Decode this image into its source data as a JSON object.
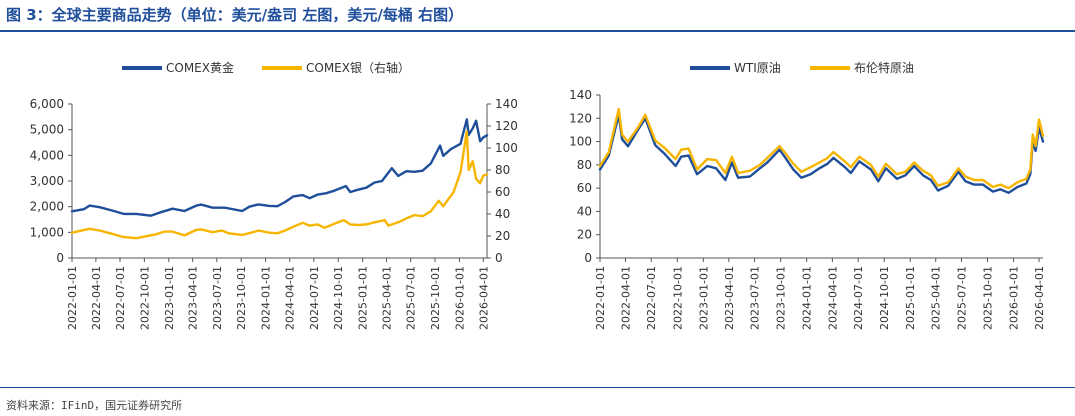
{
  "figure": {
    "title": "图 3：全球主要商品走势（单位：美元/盎司 左图，美元/每桶 右图）",
    "source": "资料来源：IFinD，国元证券研究所"
  },
  "colors": {
    "primary": "#1f4e9a",
    "secondary": "#f7b500"
  },
  "x_ticks": [
    "2022-01-01",
    "2022-04-01",
    "2022-07-01",
    "2022-10-01",
    "2023-01-01",
    "2023-04-01",
    "2023-07-01",
    "2023-10-01",
    "2024-01-01",
    "2024-04-01",
    "2024-07-01",
    "2024-10-01",
    "2025-01-01",
    "2025-04-01",
    "2025-07-01",
    "2025-10-01",
    "2026-01-01",
    "2026-04-01"
  ],
  "chart_data": [
    {
      "type": "line",
      "xlabel": "",
      "ylabel": "",
      "x_start": "2022-01-01",
      "x_end": "2026-04-15",
      "y_left_ticks": [
        "0",
        "1,000",
        "2,000",
        "3,000",
        "4,000",
        "5,000",
        "6,000"
      ],
      "ylim_left": [
        0,
        6000
      ],
      "y_right_ticks": [
        "0",
        "20",
        "40",
        "60",
        "80",
        "100",
        "120",
        "140"
      ],
      "ylim_right": [
        0,
        140
      ],
      "legend_position": "top",
      "series": [
        {
          "name": "COMEX黄金",
          "axis": "left",
          "color": "#1f4e9a",
          "points": [
            [
              "2022-01-01",
              1820
            ],
            [
              "2022-02-15",
              1900
            ],
            [
              "2022-03-08",
              2040
            ],
            [
              "2022-04-15",
              1980
            ],
            [
              "2022-06-01",
              1850
            ],
            [
              "2022-07-15",
              1720
            ],
            [
              "2022-09-01",
              1720
            ],
            [
              "2022-10-25",
              1650
            ],
            [
              "2022-12-01",
              1780
            ],
            [
              "2023-01-15",
              1920
            ],
            [
              "2023-03-01",
              1830
            ],
            [
              "2023-04-15",
              2040
            ],
            [
              "2023-05-04",
              2080
            ],
            [
              "2023-06-15",
              1960
            ],
            [
              "2023-08-01",
              1960
            ],
            [
              "2023-10-05",
              1830
            ],
            [
              "2023-11-01",
              2000
            ],
            [
              "2023-12-05",
              2090
            ],
            [
              "2024-01-15",
              2030
            ],
            [
              "2024-02-15",
              2020
            ],
            [
              "2024-03-15",
              2180
            ],
            [
              "2024-04-15",
              2400
            ],
            [
              "2024-05-20",
              2450
            ],
            [
              "2024-06-15",
              2330
            ],
            [
              "2024-07-15",
              2470
            ],
            [
              "2024-08-15",
              2520
            ],
            [
              "2024-09-15",
              2620
            ],
            [
              "2024-10-30",
              2800
            ],
            [
              "2024-11-15",
              2570
            ],
            [
              "2024-12-15",
              2660
            ],
            [
              "2025-01-15",
              2740
            ],
            [
              "2025-02-15",
              2940
            ],
            [
              "2025-03-15",
              3000
            ],
            [
              "2025-04-21",
              3500
            ],
            [
              "2025-05-15",
              3200
            ],
            [
              "2025-06-15",
              3380
            ],
            [
              "2025-07-15",
              3360
            ],
            [
              "2025-08-15",
              3400
            ],
            [
              "2025-09-15",
              3680
            ],
            [
              "2025-10-20",
              4380
            ],
            [
              "2025-11-01",
              3980
            ],
            [
              "2025-12-01",
              4250
            ],
            [
              "2026-01-05",
              4450
            ],
            [
              "2026-01-29",
              5400
            ],
            [
              "2026-02-05",
              4800
            ],
            [
              "2026-02-20",
              5050
            ],
            [
              "2026-03-05",
              5350
            ],
            [
              "2026-03-20",
              4550
            ],
            [
              "2026-04-01",
              4700
            ],
            [
              "2026-04-15",
              4780
            ]
          ]
        },
        {
          "name": "COMEX银（右轴）",
          "axis": "right",
          "color": "#f7b500",
          "points": [
            [
              "2022-01-01",
              23
            ],
            [
              "2022-03-08",
              26.5
            ],
            [
              "2022-04-15",
              25
            ],
            [
              "2022-06-01",
              22
            ],
            [
              "2022-07-15",
              19
            ],
            [
              "2022-09-01",
              18
            ],
            [
              "2022-10-01",
              19.5
            ],
            [
              "2022-11-15",
              21.5
            ],
            [
              "2022-12-15",
              24
            ],
            [
              "2023-01-15",
              24
            ],
            [
              "2023-03-01",
              20.5
            ],
            [
              "2023-04-15",
              25.5
            ],
            [
              "2023-05-04",
              26
            ],
            [
              "2023-06-15",
              23.5
            ],
            [
              "2023-07-20",
              25
            ],
            [
              "2023-08-15",
              22.5
            ],
            [
              "2023-10-05",
              21
            ],
            [
              "2023-11-15",
              23.5
            ],
            [
              "2023-12-05",
              25
            ],
            [
              "2024-01-15",
              23
            ],
            [
              "2024-02-15",
              22.5
            ],
            [
              "2024-03-15",
              25
            ],
            [
              "2024-04-15",
              28.5
            ],
            [
              "2024-05-20",
              32
            ],
            [
              "2024-06-15",
              29.5
            ],
            [
              "2024-07-15",
              30.5
            ],
            [
              "2024-08-10",
              27.5
            ],
            [
              "2024-09-15",
              31
            ],
            [
              "2024-10-22",
              34.5
            ],
            [
              "2024-11-15",
              30.5
            ],
            [
              "2024-12-15",
              30
            ],
            [
              "2025-01-15",
              30.5
            ],
            [
              "2025-02-15",
              32.5
            ],
            [
              "2025-03-25",
              34.5
            ],
            [
              "2025-04-08",
              29.5
            ],
            [
              "2025-05-15",
              32.5
            ],
            [
              "2025-06-15",
              36
            ],
            [
              "2025-07-15",
              39
            ],
            [
              "2025-08-15",
              38
            ],
            [
              "2025-09-15",
              42.5
            ],
            [
              "2025-10-15",
              52
            ],
            [
              "2025-11-01",
              47
            ],
            [
              "2025-12-10",
              60
            ],
            [
              "2026-01-05",
              78
            ],
            [
              "2026-01-29",
              115
            ],
            [
              "2026-02-05",
              80
            ],
            [
              "2026-02-20",
              88
            ],
            [
              "2026-03-05",
              72
            ],
            [
              "2026-03-20",
              68
            ],
            [
              "2026-04-01",
              75
            ],
            [
              "2026-04-15",
              76
            ]
          ]
        }
      ]
    },
    {
      "type": "line",
      "xlabel": "",
      "ylabel": "",
      "x_start": "2022-01-01",
      "x_end": "2026-04-15",
      "y_ticks": [
        "0",
        "20",
        "40",
        "60",
        "80",
        "100",
        "120",
        "140"
      ],
      "ylim": [
        0,
        140
      ],
      "legend_position": "top",
      "series": [
        {
          "name": "WTI原油",
          "color": "#1f4e9a",
          "points": [
            [
              "2022-01-01",
              76
            ],
            [
              "2022-02-01",
              88
            ],
            [
              "2022-03-08",
              123
            ],
            [
              "2022-03-20",
              102
            ],
            [
              "2022-04-10",
              96
            ],
            [
              "2022-05-15",
              110
            ],
            [
              "2022-06-10",
              120
            ],
            [
              "2022-07-15",
              97
            ],
            [
              "2022-08-15",
              90
            ],
            [
              "2022-09-25",
              79
            ],
            [
              "2022-10-15",
              87
            ],
            [
              "2022-11-10",
              88
            ],
            [
              "2022-12-10",
              72
            ],
            [
              "2023-01-15",
              79
            ],
            [
              "2023-02-15",
              77
            ],
            [
              "2023-03-20",
              67
            ],
            [
              "2023-04-12",
              82
            ],
            [
              "2023-05-04",
              69
            ],
            [
              "2023-06-15",
              70
            ],
            [
              "2023-07-20",
              77
            ],
            [
              "2023-08-15",
              82
            ],
            [
              "2023-09-27",
              93
            ],
            [
              "2023-10-15",
              87
            ],
            [
              "2023-11-15",
              76
            ],
            [
              "2023-12-13",
              69
            ],
            [
              "2024-01-15",
              72
            ],
            [
              "2024-02-15",
              77
            ],
            [
              "2024-03-15",
              81
            ],
            [
              "2024-04-05",
              86
            ],
            [
              "2024-05-15",
              78
            ],
            [
              "2024-06-05",
              73
            ],
            [
              "2024-07-05",
              83
            ],
            [
              "2024-08-15",
              76
            ],
            [
              "2024-09-10",
              66
            ],
            [
              "2024-10-07",
              77
            ],
            [
              "2024-11-15",
              68
            ],
            [
              "2024-12-15",
              71
            ],
            [
              "2025-01-15",
              79
            ],
            [
              "2025-02-15",
              71
            ],
            [
              "2025-03-15",
              67
            ],
            [
              "2025-04-09",
              58
            ],
            [
              "2025-05-15",
              62
            ],
            [
              "2025-06-20",
              74
            ],
            [
              "2025-07-15",
              66
            ],
            [
              "2025-08-15",
              63
            ],
            [
              "2025-09-15",
              63
            ],
            [
              "2025-10-20",
              57
            ],
            [
              "2025-11-15",
              59
            ],
            [
              "2025-12-15",
              56
            ],
            [
              "2026-01-15",
              61
            ],
            [
              "2026-02-15",
              64
            ],
            [
              "2026-03-01",
              72
            ],
            [
              "2026-03-10",
              101
            ],
            [
              "2026-03-20",
              92
            ],
            [
              "2026-04-01",
              112
            ],
            [
              "2026-04-15",
              100
            ]
          ]
        },
        {
          "name": "布伦特原油",
          "color": "#f7b500",
          "points": [
            [
              "2022-01-01",
              79
            ],
            [
              "2022-02-01",
              91
            ],
            [
              "2022-03-08",
              128
            ],
            [
              "2022-03-20",
              106
            ],
            [
              "2022-04-10",
              100
            ],
            [
              "2022-05-15",
              112
            ],
            [
              "2022-06-10",
              123
            ],
            [
              "2022-07-15",
              101
            ],
            [
              "2022-08-15",
              95
            ],
            [
              "2022-09-25",
              85
            ],
            [
              "2022-10-15",
              93
            ],
            [
              "2022-11-10",
              94
            ],
            [
              "2022-12-10",
              76
            ],
            [
              "2023-01-15",
              85
            ],
            [
              "2023-02-15",
              84
            ],
            [
              "2023-03-20",
              73
            ],
            [
              "2023-04-12",
              87
            ],
            [
              "2023-05-04",
              73
            ],
            [
              "2023-06-15",
              75
            ],
            [
              "2023-07-20",
              80
            ],
            [
              "2023-08-15",
              86
            ],
            [
              "2023-09-27",
              96
            ],
            [
              "2023-10-15",
              91
            ],
            [
              "2023-11-15",
              81
            ],
            [
              "2023-12-13",
              74
            ],
            [
              "2024-01-15",
              78
            ],
            [
              "2024-02-15",
              82
            ],
            [
              "2024-03-15",
              86
            ],
            [
              "2024-04-05",
              91
            ],
            [
              "2024-05-15",
              83
            ],
            [
              "2024-06-05",
              78
            ],
            [
              "2024-07-05",
              87
            ],
            [
              "2024-08-15",
              80
            ],
            [
              "2024-09-10",
              70
            ],
            [
              "2024-10-07",
              81
            ],
            [
              "2024-11-15",
              72
            ],
            [
              "2024-12-15",
              74
            ],
            [
              "2025-01-15",
              82
            ],
            [
              "2025-02-15",
              75
            ],
            [
              "2025-03-15",
              71
            ],
            [
              "2025-04-09",
              62
            ],
            [
              "2025-05-15",
              65
            ],
            [
              "2025-06-20",
              77
            ],
            [
              "2025-07-15",
              70
            ],
            [
              "2025-08-15",
              67
            ],
            [
              "2025-09-15",
              67
            ],
            [
              "2025-10-20",
              61
            ],
            [
              "2025-11-15",
              63
            ],
            [
              "2025-12-15",
              60
            ],
            [
              "2026-01-15",
              65
            ],
            [
              "2026-02-15",
              68
            ],
            [
              "2026-03-01",
              76
            ],
            [
              "2026-03-10",
              106
            ],
            [
              "2026-03-20",
              96
            ],
            [
              "2026-04-01",
              119
            ],
            [
              "2026-04-15",
              105
            ]
          ]
        }
      ]
    }
  ]
}
